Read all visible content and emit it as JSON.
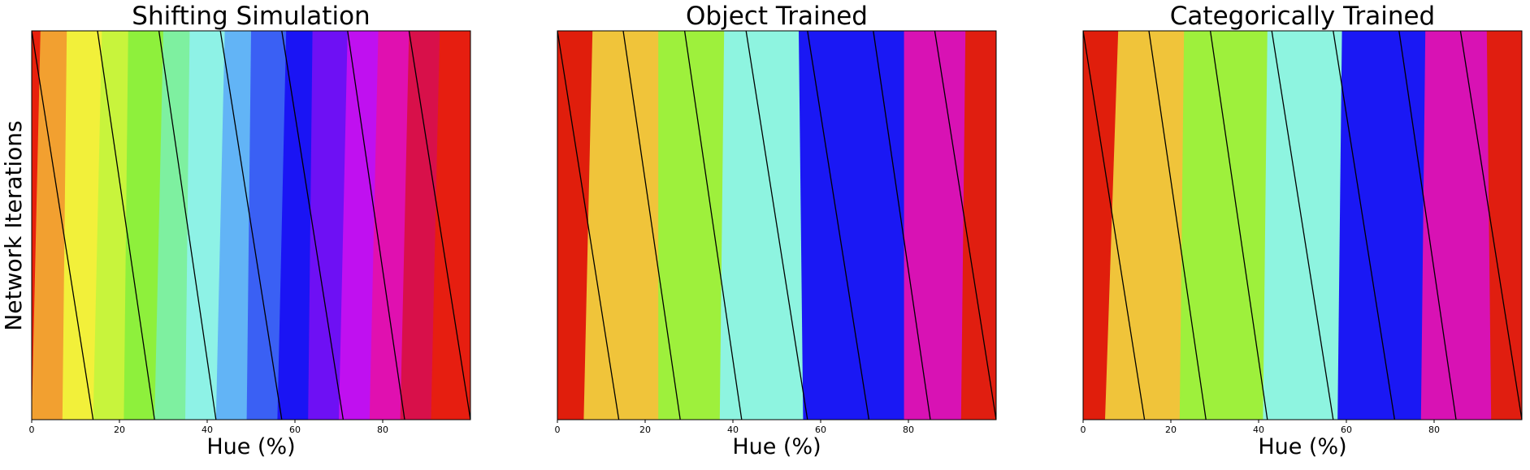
{
  "figure": {
    "ylabel": "Network Iterations"
  },
  "chart_data": [
    {
      "type": "heatmap",
      "title": "Shifting Simulation",
      "xlabel": "Hue (%)",
      "ylabel": "Network Iterations",
      "xlim": [
        0,
        100
      ],
      "x_ticks": [
        0,
        20,
        40,
        60,
        80
      ],
      "band_boundaries_top": [
        2,
        8,
        16,
        22,
        30,
        36,
        44,
        50,
        58,
        64,
        72,
        79,
        86,
        93
      ],
      "band_boundaries_bottom": [
        0,
        7,
        14,
        21,
        28,
        35,
        42,
        49,
        56,
        63,
        70,
        77,
        84,
        91
      ],
      "band_colors": [
        "#e8200c",
        "#f2a030",
        "#f2f03a",
        "#c8f43c",
        "#8ef03c",
        "#7ef0a0",
        "#8ef2e6",
        "#62b4f6",
        "#3a60f4",
        "#1a14f4",
        "#6e10f4",
        "#c010f0",
        "#e010b0",
        "#d8104a",
        "#e61e10"
      ],
      "diagonal_lines_top": [
        0,
        15,
        29,
        43,
        57,
        72,
        86
      ],
      "diagonal_lines_bottom": [
        14,
        28,
        42,
        57,
        71,
        85,
        100
      ]
    },
    {
      "type": "heatmap",
      "title": "Object Trained",
      "xlabel": "Hue (%)",
      "xlim": [
        0,
        100
      ],
      "x_ticks": [
        0,
        20,
        40,
        60,
        80
      ],
      "band_boundaries_top": [
        8,
        23,
        38,
        55,
        79,
        93
      ],
      "band_boundaries_bottom": [
        6,
        23,
        37,
        56,
        79,
        92
      ],
      "band_colors": [
        "#e01e0c",
        "#f0c43a",
        "#9ef03c",
        "#8ef4e0",
        "#1a18f4",
        "#d812b4",
        "#e01e10"
      ],
      "diagonal_lines_top": [
        0,
        15,
        29,
        43,
        57,
        72,
        86
      ],
      "diagonal_lines_bottom": [
        14,
        28,
        42,
        57,
        71,
        85,
        100
      ]
    },
    {
      "type": "heatmap",
      "title": "Categorically Trained",
      "xlabel": "Hue (%)",
      "xlim": [
        0,
        100
      ],
      "x_ticks": [
        0,
        20,
        40,
        60,
        80
      ],
      "band_boundaries_top": [
        8,
        23,
        42,
        59,
        78,
        92
      ],
      "band_boundaries_bottom": [
        5,
        22,
        41,
        58,
        77,
        93
      ],
      "band_colors": [
        "#e01e0c",
        "#f0c43a",
        "#9ef03c",
        "#8ef4e0",
        "#1a18f4",
        "#d812b4",
        "#e01e10"
      ],
      "diagonal_lines_top": [
        0,
        15,
        29,
        43,
        57,
        72,
        86
      ],
      "diagonal_lines_bottom": [
        14,
        28,
        42,
        57,
        71,
        85,
        100
      ]
    }
  ]
}
